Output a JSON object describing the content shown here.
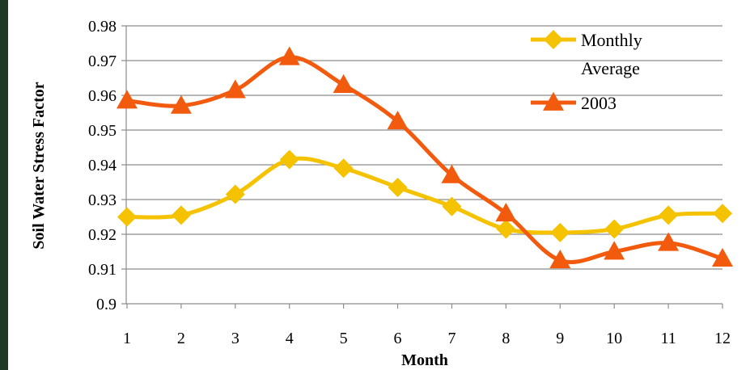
{
  "chart_data": {
    "type": "line",
    "title": "",
    "xlabel": "Month",
    "ylabel": "Soil Water Stress Factor",
    "x": [
      1,
      2,
      3,
      4,
      5,
      6,
      7,
      8,
      9,
      10,
      11,
      12
    ],
    "x_tick_labels": [
      "1",
      "2",
      "3",
      "4",
      "5",
      "6",
      "7",
      "8",
      "9",
      "10",
      "11",
      "12"
    ],
    "xlim": [
      1,
      12
    ],
    "ylim": [
      0.9,
      0.98
    ],
    "y_ticks": [
      0.9,
      0.91,
      0.92,
      0.93,
      0.94,
      0.95,
      0.96,
      0.97,
      0.98
    ],
    "y_tick_labels": [
      "0.9",
      "0.91",
      "0.92",
      "0.93",
      "0.94",
      "0.95",
      "0.96",
      "0.97",
      "0.98"
    ],
    "grid": "horizontal",
    "legend_position": "top-right",
    "series": [
      {
        "name": "Monthly Average",
        "legend_lines": [
          "Monthly",
          "Average"
        ],
        "marker": "diamond",
        "color": "#f5c200",
        "values": [
          0.925,
          0.9255,
          0.9315,
          0.9415,
          0.939,
          0.9335,
          0.928,
          0.9215,
          0.9205,
          0.9215,
          0.9255,
          0.926
        ]
      },
      {
        "name": "2003",
        "legend_lines": [
          "2003"
        ],
        "marker": "triangle",
        "color": "#f25a0e",
        "values": [
          0.9585,
          0.957,
          0.9615,
          0.971,
          0.963,
          0.9525,
          0.937,
          0.926,
          0.9125,
          0.915,
          0.9175,
          0.913
        ]
      }
    ]
  },
  "colors": {
    "background_frame": "#1e3a24",
    "panel": "#ffffff",
    "gridline": "#8c8c8c"
  }
}
